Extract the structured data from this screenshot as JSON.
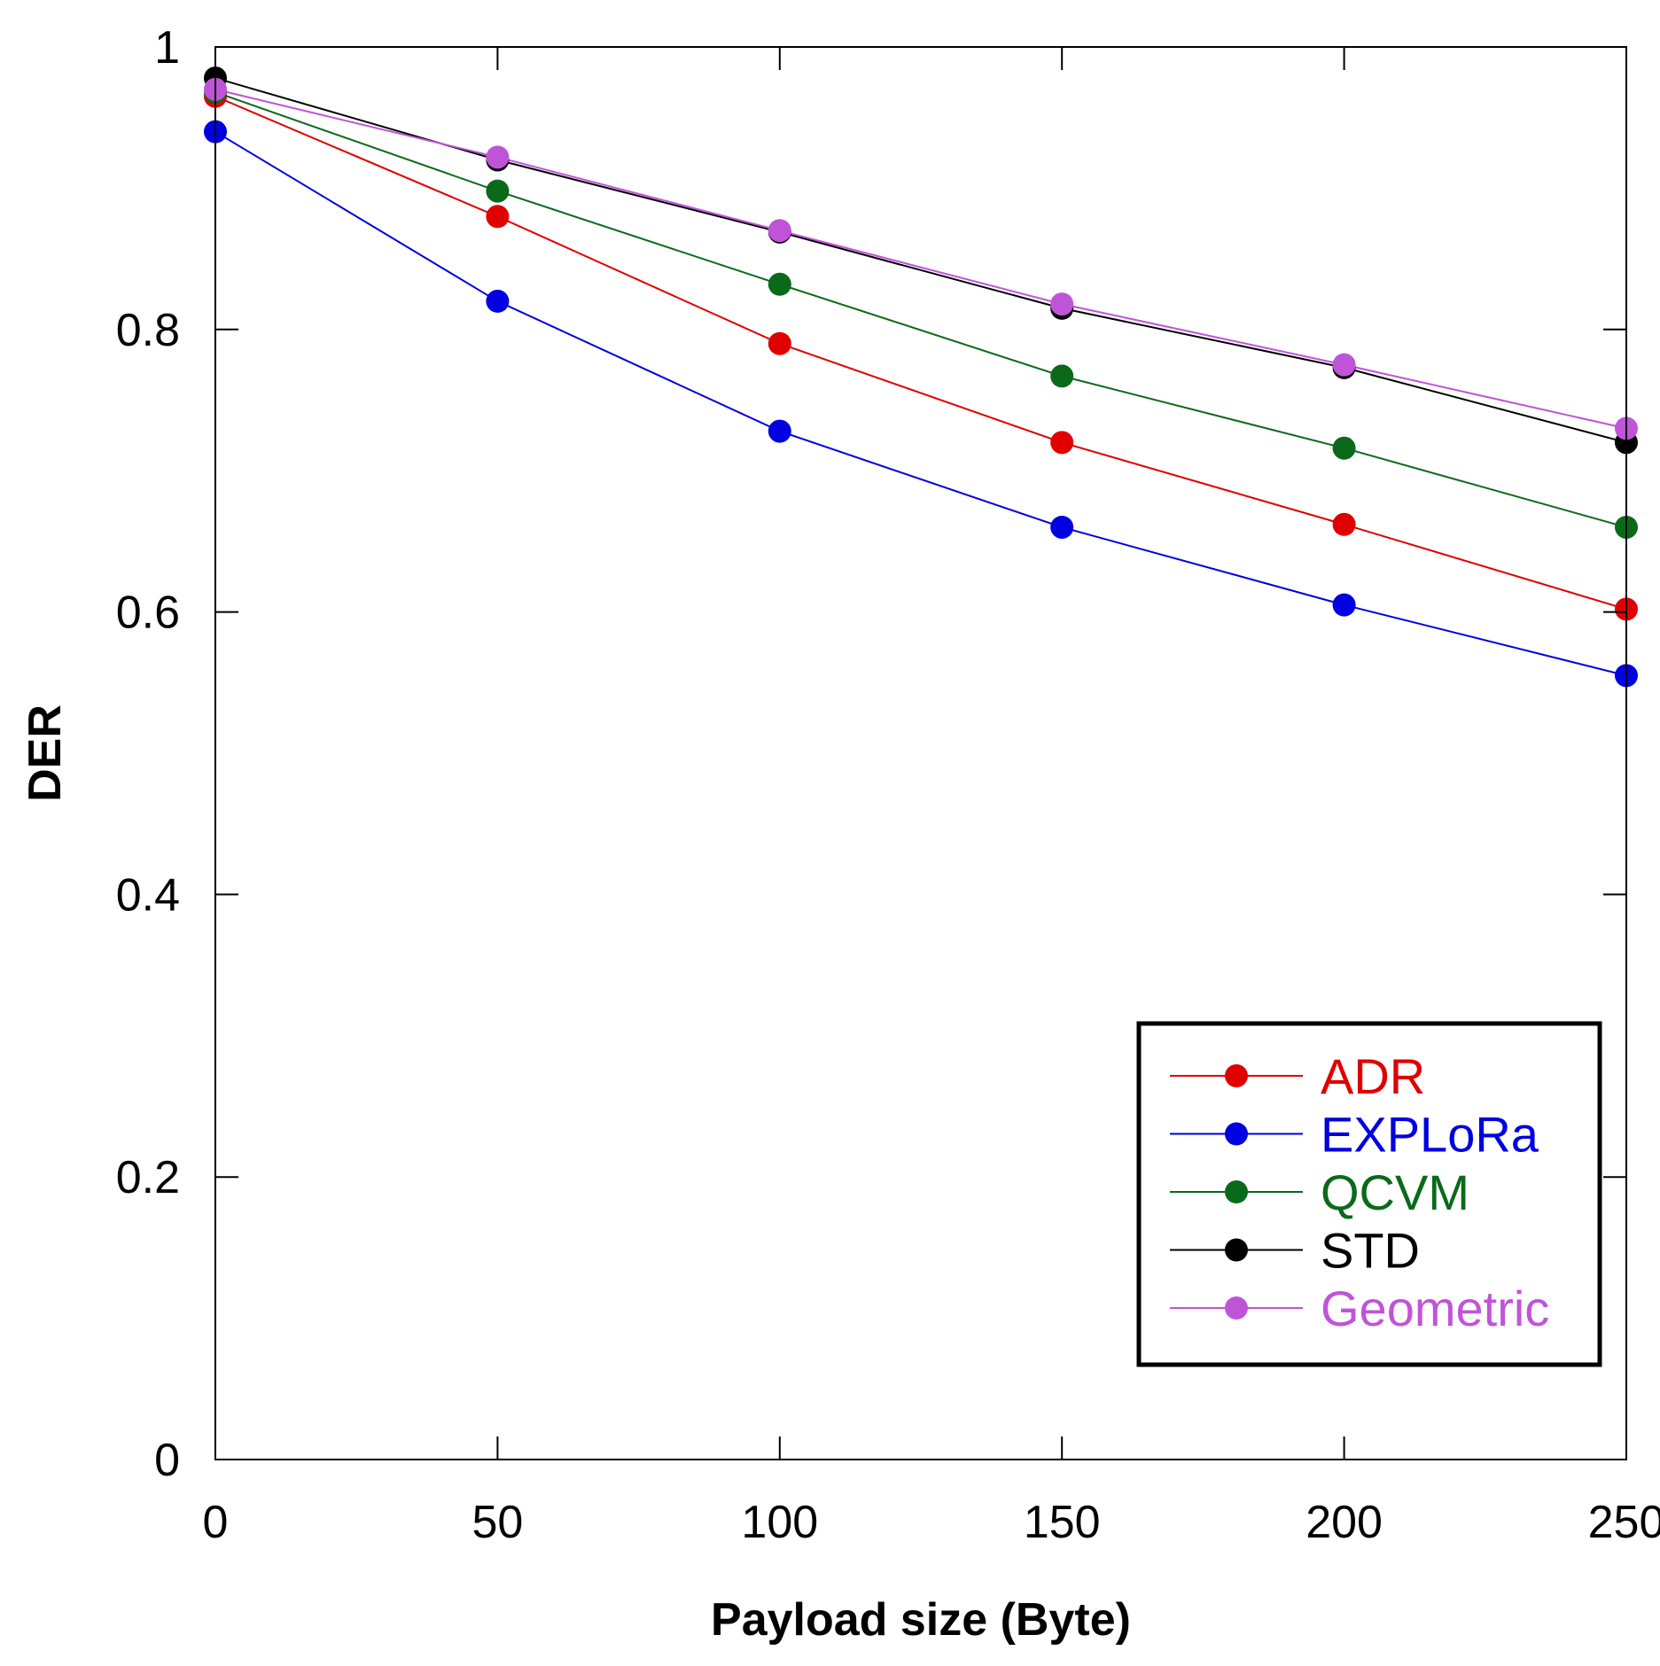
{
  "chart_data": {
    "type": "line",
    "title": "",
    "xlabel": "Payload size (Byte)",
    "ylabel": "DER",
    "xlim": [
      0,
      250
    ],
    "ylim": [
      0,
      1
    ],
    "x": [
      0,
      50,
      100,
      150,
      200,
      250
    ],
    "xticks": [
      0,
      50,
      100,
      150,
      200,
      250
    ],
    "xtick_labels": [
      "0",
      "50",
      "100",
      "150",
      "200",
      "250"
    ],
    "yticks": [
      0,
      0.2,
      0.4,
      0.6,
      0.8,
      1
    ],
    "ytick_labels": [
      "0",
      "0.2",
      "0.4",
      "0.6",
      "0.8",
      "1"
    ],
    "grid": false,
    "legend_position": "bottom-right",
    "series": [
      {
        "name": "ADR",
        "color": "#e00000",
        "values": [
          0.965,
          0.88,
          0.79,
          0.72,
          0.662,
          0.602
        ]
      },
      {
        "name": "EXPLoRa",
        "color": "#0000e0",
        "values": [
          0.94,
          0.82,
          0.728,
          0.66,
          0.605,
          0.555
        ]
      },
      {
        "name": "QCVM",
        "color": "#0a6a1a",
        "values": [
          0.968,
          0.898,
          0.832,
          0.767,
          0.716,
          0.66
        ]
      },
      {
        "name": "STD",
        "color": "#000000",
        "values": [
          0.978,
          0.92,
          0.869,
          0.815,
          0.773,
          0.72
        ]
      },
      {
        "name": "Geometric",
        "color": "#c054d8",
        "values": [
          0.97,
          0.922,
          0.87,
          0.818,
          0.775,
          0.73
        ]
      }
    ]
  }
}
